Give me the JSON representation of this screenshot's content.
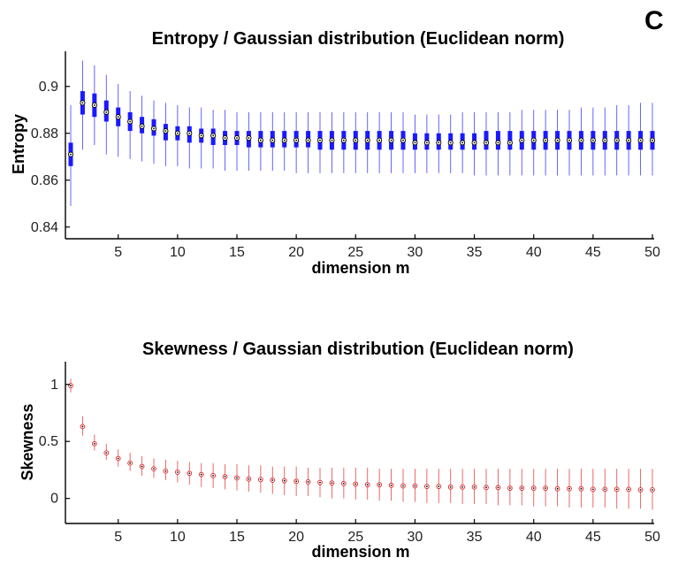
{
  "panel_label": "C",
  "chart_data": [
    {
      "type": "boxplot",
      "title": "Entropy / Gaussian distribution (Euclidean norm)",
      "xlabel": "dimension m",
      "ylabel": "Entropy",
      "xlim": [
        1,
        50
      ],
      "ylim": [
        0.835,
        0.915
      ],
      "x_ticks": [
        5,
        10,
        15,
        20,
        25,
        30,
        35,
        40,
        45,
        50
      ],
      "y_ticks": [
        0.84,
        0.86,
        0.88,
        0.9
      ],
      "y_tick_labels": [
        "0.84",
        "0.86",
        "0.88",
        "0.9"
      ],
      "color": "#1a1aff",
      "x": [
        1,
        2,
        3,
        4,
        5,
        6,
        7,
        8,
        9,
        10,
        11,
        12,
        13,
        14,
        15,
        16,
        17,
        18,
        19,
        20,
        21,
        22,
        23,
        24,
        25,
        26,
        27,
        28,
        29,
        30,
        31,
        32,
        33,
        34,
        35,
        36,
        37,
        38,
        39,
        40,
        41,
        42,
        43,
        44,
        45,
        46,
        47,
        48,
        49,
        50
      ],
      "median": [
        0.871,
        0.893,
        0.892,
        0.889,
        0.887,
        0.885,
        0.883,
        0.882,
        0.881,
        0.88,
        0.88,
        0.879,
        0.879,
        0.878,
        0.878,
        0.878,
        0.877,
        0.877,
        0.877,
        0.877,
        0.877,
        0.877,
        0.877,
        0.877,
        0.877,
        0.877,
        0.877,
        0.877,
        0.877,
        0.876,
        0.876,
        0.876,
        0.876,
        0.876,
        0.876,
        0.876,
        0.876,
        0.876,
        0.877,
        0.877,
        0.877,
        0.877,
        0.877,
        0.877,
        0.877,
        0.877,
        0.877,
        0.877,
        0.877,
        0.877
      ],
      "q1": [
        0.866,
        0.888,
        0.887,
        0.885,
        0.883,
        0.881,
        0.88,
        0.879,
        0.877,
        0.877,
        0.876,
        0.876,
        0.875,
        0.875,
        0.875,
        0.874,
        0.874,
        0.874,
        0.874,
        0.874,
        0.874,
        0.873,
        0.873,
        0.873,
        0.873,
        0.873,
        0.873,
        0.873,
        0.873,
        0.873,
        0.873,
        0.873,
        0.873,
        0.873,
        0.873,
        0.873,
        0.873,
        0.873,
        0.873,
        0.873,
        0.873,
        0.873,
        0.873,
        0.873,
        0.873,
        0.873,
        0.873,
        0.873,
        0.873,
        0.873
      ],
      "q3": [
        0.876,
        0.898,
        0.897,
        0.894,
        0.891,
        0.889,
        0.887,
        0.886,
        0.884,
        0.883,
        0.883,
        0.882,
        0.882,
        0.881,
        0.881,
        0.881,
        0.881,
        0.881,
        0.881,
        0.881,
        0.881,
        0.881,
        0.881,
        0.881,
        0.881,
        0.881,
        0.881,
        0.881,
        0.881,
        0.88,
        0.88,
        0.88,
        0.88,
        0.88,
        0.88,
        0.881,
        0.881,
        0.881,
        0.881,
        0.881,
        0.881,
        0.881,
        0.881,
        0.881,
        0.881,
        0.881,
        0.881,
        0.881,
        0.881,
        0.881
      ],
      "whisker_low": [
        0.849,
        0.873,
        0.875,
        0.871,
        0.87,
        0.869,
        0.868,
        0.867,
        0.866,
        0.866,
        0.865,
        0.865,
        0.865,
        0.864,
        0.864,
        0.864,
        0.864,
        0.864,
        0.864,
        0.863,
        0.863,
        0.863,
        0.863,
        0.863,
        0.863,
        0.863,
        0.863,
        0.863,
        0.863,
        0.863,
        0.863,
        0.863,
        0.863,
        0.863,
        0.862,
        0.862,
        0.862,
        0.862,
        0.862,
        0.862,
        0.862,
        0.862,
        0.862,
        0.862,
        0.862,
        0.862,
        0.862,
        0.862,
        0.862,
        0.862
      ],
      "whisker_high": [
        0.892,
        0.911,
        0.909,
        0.905,
        0.901,
        0.898,
        0.896,
        0.894,
        0.893,
        0.892,
        0.891,
        0.891,
        0.89,
        0.89,
        0.889,
        0.889,
        0.889,
        0.889,
        0.889,
        0.889,
        0.889,
        0.889,
        0.889,
        0.889,
        0.889,
        0.889,
        0.889,
        0.889,
        0.889,
        0.888,
        0.888,
        0.888,
        0.888,
        0.889,
        0.889,
        0.889,
        0.889,
        0.889,
        0.89,
        0.89,
        0.89,
        0.89,
        0.89,
        0.891,
        0.891,
        0.891,
        0.892,
        0.892,
        0.893,
        0.893
      ]
    },
    {
      "type": "boxplot",
      "title": "Skewness / Gaussian distribution (Euclidean norm)",
      "xlabel": "dimension m",
      "ylabel": "Skewness",
      "xlim": [
        1,
        50
      ],
      "ylim": [
        -0.22,
        1.2
      ],
      "x_ticks": [
        5,
        10,
        15,
        20,
        25,
        30,
        35,
        40,
        45,
        50
      ],
      "y_ticks": [
        0,
        0.5,
        1
      ],
      "y_tick_labels": [
        "0",
        "0.5",
        "1"
      ],
      "color": "#e02020",
      "x": [
        1,
        2,
        3,
        4,
        5,
        6,
        7,
        8,
        9,
        10,
        11,
        12,
        13,
        14,
        15,
        16,
        17,
        18,
        19,
        20,
        21,
        22,
        23,
        24,
        25,
        26,
        27,
        28,
        29,
        30,
        31,
        32,
        33,
        34,
        35,
        36,
        37,
        38,
        39,
        40,
        41,
        42,
        43,
        44,
        45,
        46,
        47,
        48,
        49,
        50
      ],
      "median": [
        0.99,
        0.63,
        0.48,
        0.4,
        0.35,
        0.31,
        0.28,
        0.26,
        0.24,
        0.23,
        0.22,
        0.21,
        0.2,
        0.19,
        0.18,
        0.17,
        0.165,
        0.16,
        0.155,
        0.15,
        0.145,
        0.14,
        0.135,
        0.13,
        0.125,
        0.12,
        0.12,
        0.115,
        0.11,
        0.11,
        0.105,
        0.105,
        0.1,
        0.1,
        0.1,
        0.095,
        0.095,
        0.09,
        0.09,
        0.09,
        0.09,
        0.085,
        0.085,
        0.085,
        0.08,
        0.08,
        0.08,
        0.08,
        0.075,
        0.075
      ],
      "q1": [
        0.97,
        0.61,
        0.465,
        0.385,
        0.335,
        0.295,
        0.265,
        0.245,
        0.225,
        0.21,
        0.2,
        0.19,
        0.18,
        0.17,
        0.16,
        0.15,
        0.145,
        0.14,
        0.135,
        0.13,
        0.125,
        0.12,
        0.115,
        0.11,
        0.105,
        0.1,
        0.1,
        0.095,
        0.09,
        0.09,
        0.085,
        0.085,
        0.08,
        0.08,
        0.08,
        0.075,
        0.075,
        0.07,
        0.07,
        0.07,
        0.07,
        0.065,
        0.065,
        0.065,
        0.06,
        0.06,
        0.06,
        0.06,
        0.055,
        0.055
      ],
      "q3": [
        1.01,
        0.65,
        0.495,
        0.415,
        0.365,
        0.325,
        0.295,
        0.275,
        0.255,
        0.25,
        0.24,
        0.23,
        0.22,
        0.21,
        0.2,
        0.19,
        0.185,
        0.18,
        0.175,
        0.17,
        0.165,
        0.16,
        0.155,
        0.15,
        0.145,
        0.14,
        0.14,
        0.135,
        0.13,
        0.13,
        0.125,
        0.125,
        0.12,
        0.12,
        0.12,
        0.115,
        0.115,
        0.11,
        0.11,
        0.11,
        0.11,
        0.105,
        0.105,
        0.105,
        0.1,
        0.1,
        0.1,
        0.1,
        0.095,
        0.095
      ],
      "whisker_low": [
        0.93,
        0.55,
        0.42,
        0.34,
        0.28,
        0.24,
        0.2,
        0.18,
        0.16,
        0.14,
        0.12,
        0.1,
        0.09,
        0.08,
        0.07,
        0.06,
        0.05,
        0.04,
        0.03,
        0.02,
        0.02,
        0.01,
        0.0,
        0.0,
        -0.01,
        -0.01,
        -0.02,
        -0.02,
        -0.03,
        -0.03,
        -0.04,
        -0.04,
        -0.04,
        -0.05,
        -0.05,
        -0.05,
        -0.06,
        -0.06,
        -0.06,
        -0.07,
        -0.07,
        -0.07,
        -0.08,
        -0.08,
        -0.08,
        -0.08,
        -0.09,
        -0.09,
        -0.09,
        -0.1
      ],
      "whisker_high": [
        1.05,
        0.72,
        0.56,
        0.48,
        0.43,
        0.4,
        0.37,
        0.35,
        0.34,
        0.33,
        0.32,
        0.31,
        0.31,
        0.3,
        0.3,
        0.29,
        0.29,
        0.28,
        0.28,
        0.28,
        0.27,
        0.27,
        0.27,
        0.27,
        0.27,
        0.27,
        0.26,
        0.26,
        0.26,
        0.26,
        0.26,
        0.26,
        0.26,
        0.26,
        0.26,
        0.26,
        0.26,
        0.26,
        0.26,
        0.26,
        0.26,
        0.26,
        0.26,
        0.26,
        0.26,
        0.26,
        0.26,
        0.26,
        0.26,
        0.26
      ]
    }
  ]
}
